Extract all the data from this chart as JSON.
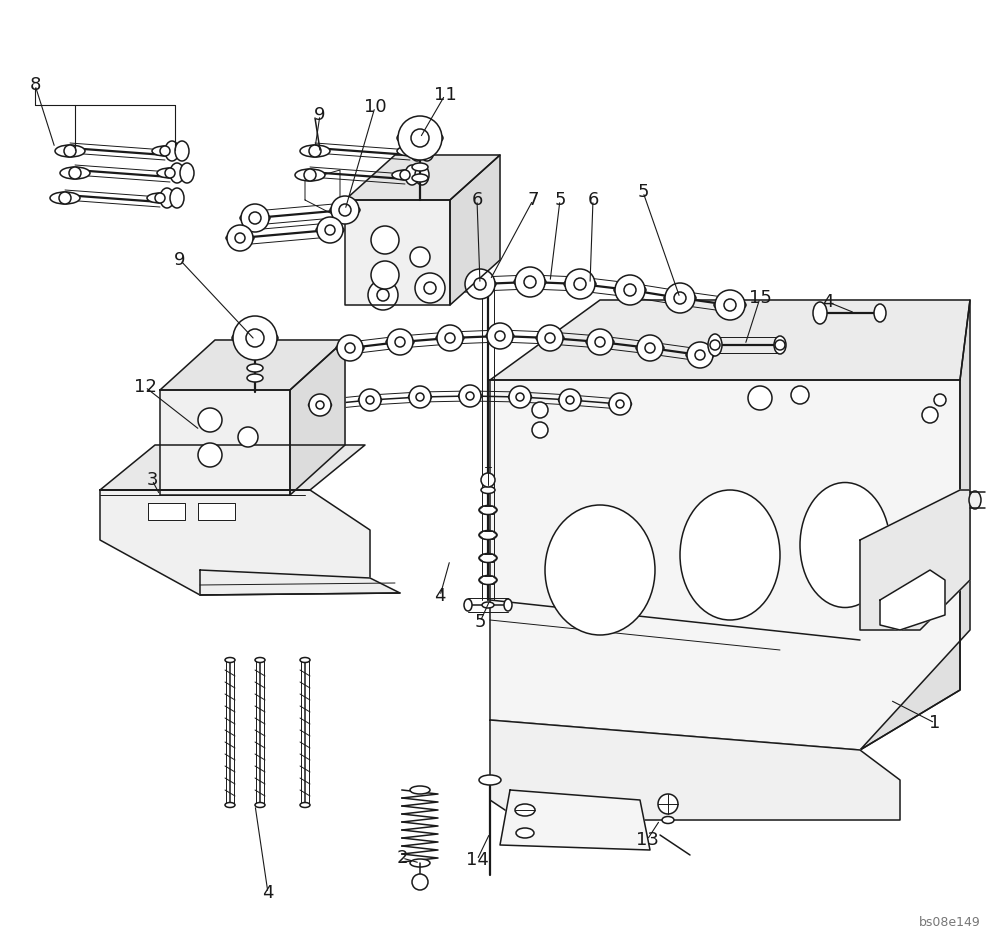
{
  "bg_color": "#ffffff",
  "line_color": "#1a1a1a",
  "text_color": "#1a1a1a",
  "watermark": "bs08e149",
  "figsize": [
    10.0,
    9.4
  ],
  "dpi": 100,
  "lw": 1.1,
  "lw_thin": 0.7,
  "lw_thick": 1.6
}
